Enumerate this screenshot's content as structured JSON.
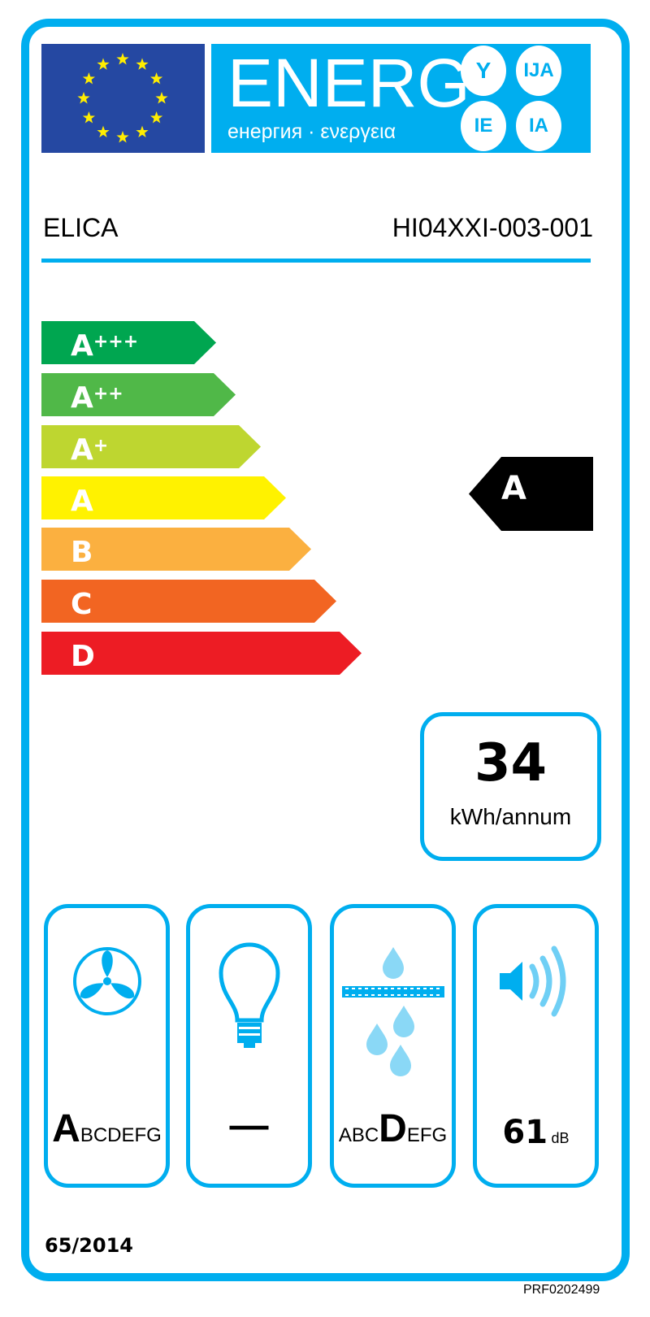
{
  "header": {
    "energy_word": "ENERG",
    "energy_subtitle": "енергия · ενεργεια",
    "language_suffixes": [
      "Y",
      "IJA",
      "IE",
      "IA"
    ]
  },
  "product": {
    "brand": "ELICA",
    "model": "HI04XXI-003-001"
  },
  "energy_classes": [
    {
      "base": "A",
      "plus": "+++",
      "color": "#00a650"
    },
    {
      "base": "A",
      "plus": "++",
      "color": "#50b848"
    },
    {
      "base": "A",
      "plus": "+",
      "color": "#bed630"
    },
    {
      "base": "A",
      "plus": "",
      "color": "#fff200"
    },
    {
      "base": "B",
      "plus": "",
      "color": "#fbb040"
    },
    {
      "base": "C",
      "plus": "",
      "color": "#f26522"
    },
    {
      "base": "D",
      "plus": "",
      "color": "#ed1c24"
    }
  ],
  "rating": {
    "class": "A"
  },
  "consumption": {
    "value": "34",
    "unit": "kWh/annum"
  },
  "indicators": {
    "fluid_dynamic": {
      "pre": "",
      "selected": "A",
      "post": "BCDEFG"
    },
    "lighting": {
      "value": "—"
    },
    "grease_filtering": {
      "pre": "ABC",
      "selected": "D",
      "post": "EFG"
    },
    "noise": {
      "value": "61",
      "unit": "dB"
    }
  },
  "regulation": "65/2014",
  "reference": "PRF0202499",
  "colors": {
    "accent": "#00aeef",
    "eu_blue": "#2548a2",
    "star": "#ffed00",
    "icon_light": "#8ad8f6"
  }
}
